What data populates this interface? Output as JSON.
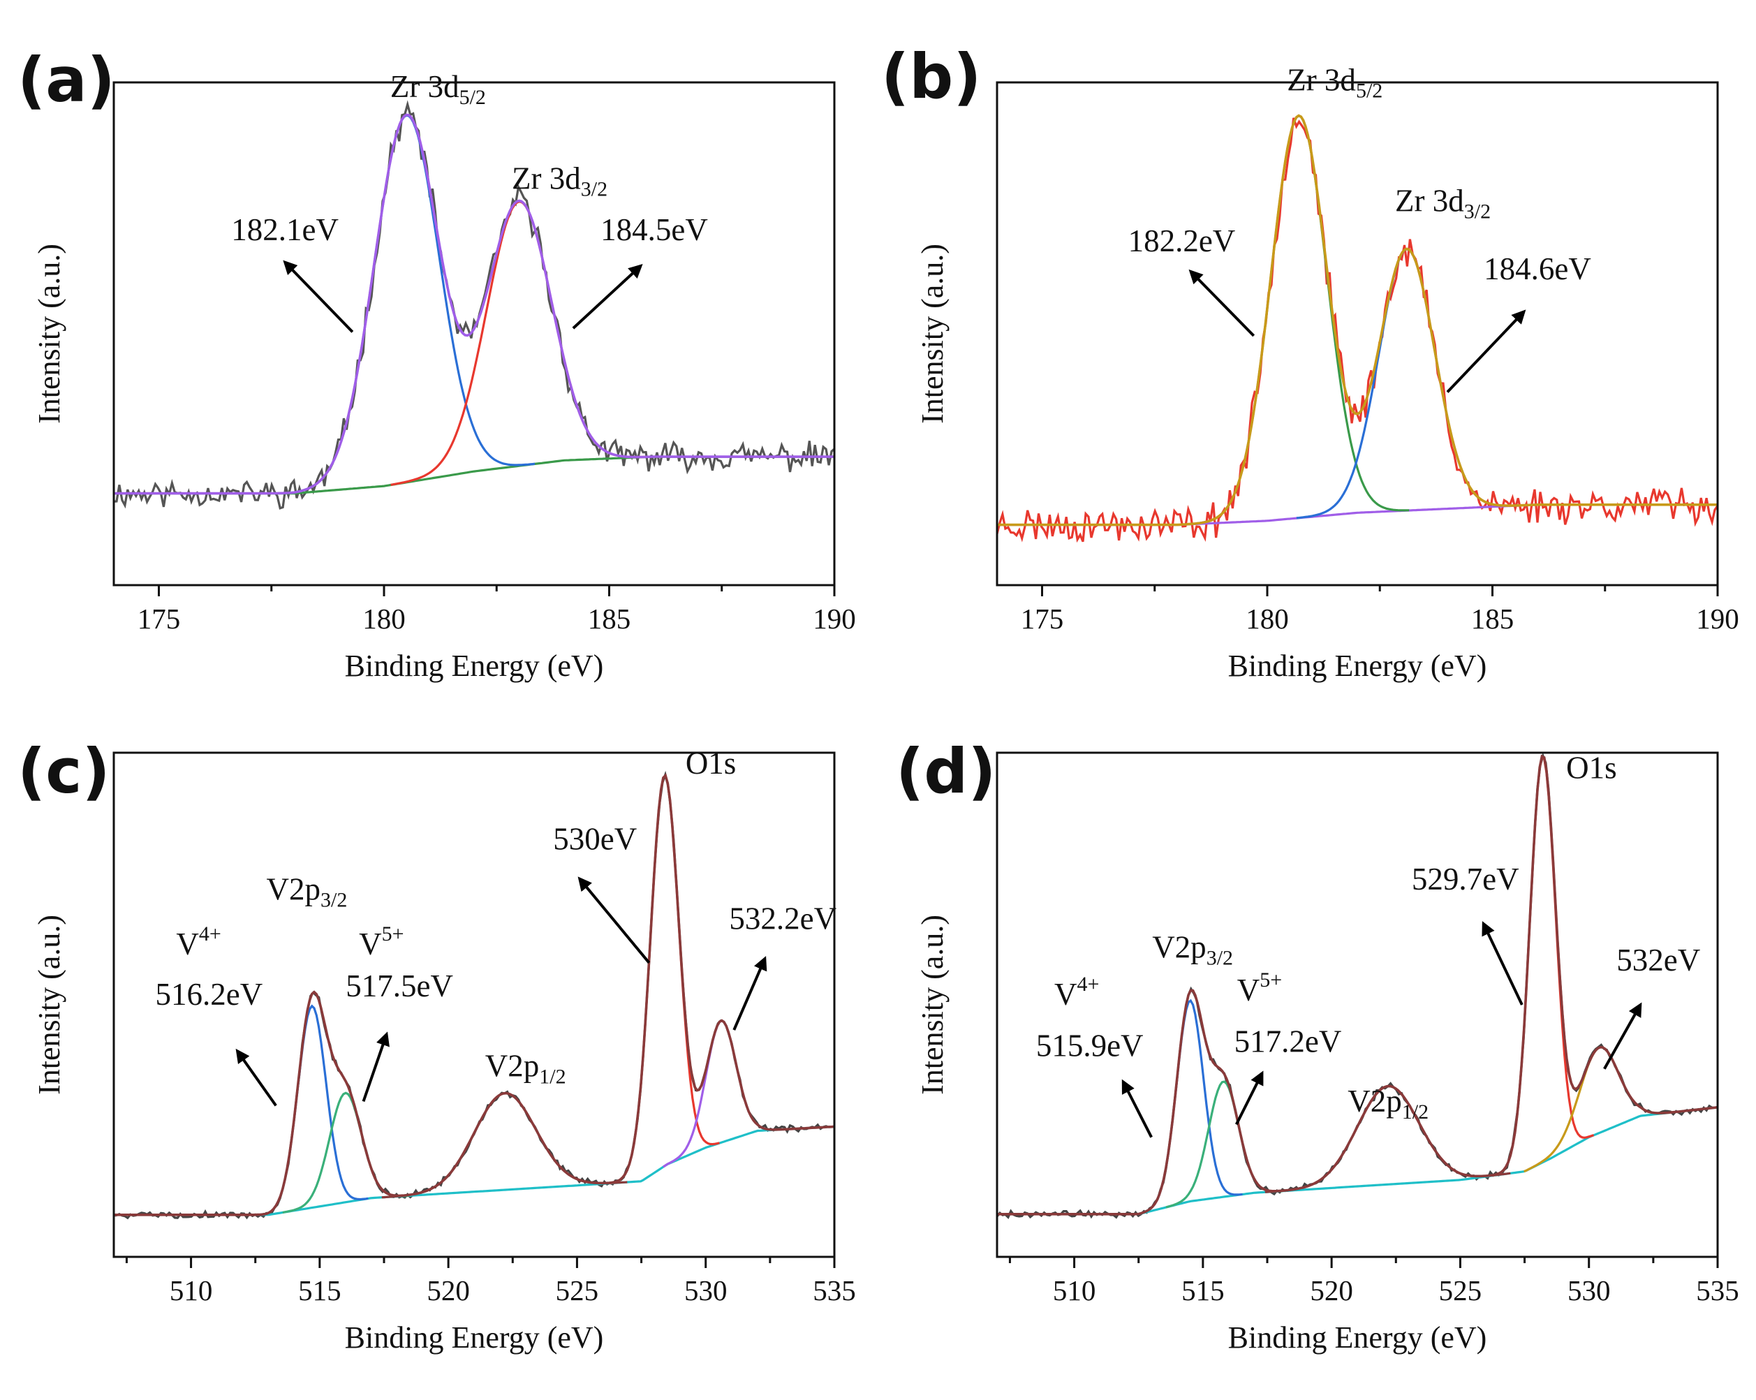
{
  "chart_data": [
    {
      "panel": "(a)",
      "type": "line",
      "xlabel": "Binding Energy (eV)",
      "ylabel": "Intensity (a.u.)",
      "xlim": [
        174,
        190
      ],
      "xticks": [
        175,
        180,
        185,
        190
      ],
      "ylim": [
        -0.25,
        1.12
      ],
      "baseline": [
        [
          174,
          0.0
        ],
        [
          178,
          0.0
        ],
        [
          180,
          0.02
        ],
        [
          182,
          0.06
        ],
        [
          184,
          0.09
        ],
        [
          186,
          0.1
        ],
        [
          190,
          0.1
        ]
      ],
      "peaks": [
        {
          "center": 180.5,
          "width": 0.72,
          "height": 1.0,
          "color": "#2a6fd6",
          "name": "Zr 3d5/2 fit"
        },
        {
          "center": 183.0,
          "width": 0.72,
          "height": 0.72,
          "color": "#e8382e",
          "name": "Zr 3d3/2 fit"
        }
      ],
      "baseline_color": "#3a9a4a",
      "envelope_color": "#a05ee8",
      "raw_color": "#555555",
      "noise": 0.03,
      "seed": 11,
      "labels": [
        {
          "base": "Zr 3d",
          "sub": "5/2",
          "x": 181.2,
          "y": 1.08
        },
        {
          "base": "Zr 3d",
          "sub": "3/2",
          "x": 183.9,
          "y": 0.83
        },
        {
          "base": "182.1eV",
          "x": 177.8,
          "y": 0.69
        },
        {
          "base": "184.5eV",
          "x": 186.0,
          "y": 0.69
        }
      ],
      "arrows": [
        {
          "from": [
            179.3,
            0.44
          ],
          "to": [
            177.8,
            0.63
          ]
        },
        {
          "from": [
            184.2,
            0.45
          ],
          "to": [
            185.7,
            0.62
          ]
        }
      ]
    },
    {
      "panel": "(b)",
      "type": "line",
      "xlabel": "Binding Energy (eV)",
      "ylabel": "Intensity (a.u.)",
      "xlim": [
        174,
        190
      ],
      "xticks": [
        175,
        180,
        185,
        190
      ],
      "ylim": [
        -0.15,
        1.1
      ],
      "baseline": [
        [
          174,
          0.0
        ],
        [
          178,
          0.0
        ],
        [
          180,
          0.01
        ],
        [
          182,
          0.03
        ],
        [
          184,
          0.04
        ],
        [
          186,
          0.05
        ],
        [
          190,
          0.05
        ]
      ],
      "peaks": [
        {
          "center": 180.7,
          "width": 0.62,
          "height": 1.0,
          "color": "#3a9a4a",
          "name": "Zr 3d5/2 fit"
        },
        {
          "center": 183.1,
          "width": 0.62,
          "height": 0.65,
          "color": "#2a6fd6",
          "name": "Zr 3d3/2 fit"
        }
      ],
      "baseline_color": "#a05ee8",
      "envelope_color": "#c89a1a",
      "raw_color": "#e8382e",
      "noise": 0.035,
      "seed": 23,
      "labels": [
        {
          "base": "Zr 3d",
          "sub": "5/2",
          "x": 181.5,
          "y": 1.08
        },
        {
          "base": "Zr 3d",
          "sub": "3/2",
          "x": 183.9,
          "y": 0.78
        },
        {
          "base": "182.2eV",
          "x": 178.1,
          "y": 0.68
        },
        {
          "base": "184.6eV",
          "x": 186.0,
          "y": 0.61
        }
      ],
      "arrows": [
        {
          "from": [
            179.7,
            0.47
          ],
          "to": [
            178.3,
            0.63
          ]
        },
        {
          "from": [
            184.0,
            0.33
          ],
          "to": [
            185.7,
            0.53
          ]
        }
      ]
    },
    {
      "panel": "(c)",
      "type": "line",
      "xlabel": "Binding Energy (eV)",
      "ylabel": "Intensity (a.u.)",
      "xlim": [
        507,
        535
      ],
      "xticks": [
        510,
        515,
        520,
        525,
        530,
        535
      ],
      "ylim": [
        -0.1,
        1.1
      ],
      "baseline": [
        [
          507,
          0.0
        ],
        [
          513,
          0.0
        ],
        [
          515,
          0.02
        ],
        [
          517,
          0.04
        ],
        [
          525,
          0.07
        ],
        [
          527.5,
          0.08
        ],
        [
          528.5,
          0.12
        ],
        [
          530,
          0.16
        ],
        [
          532,
          0.2
        ],
        [
          535,
          0.21
        ]
      ],
      "peaks": [
        {
          "center": 514.7,
          "width": 0.55,
          "height": 0.48,
          "color": "#2a6fd6",
          "name": "V4+ fit"
        },
        {
          "center": 516.0,
          "width": 0.62,
          "height": 0.26,
          "color": "#3ab07a",
          "name": "V5+ fit"
        },
        {
          "center": 522.2,
          "width": 1.2,
          "height": 0.23,
          "color": "#8a3a3a",
          "name": "V2p1/2 fit"
        },
        {
          "center": 528.4,
          "width": 0.55,
          "height": 0.93,
          "color": "#e8382e",
          "name": "O1s fit"
        },
        {
          "center": 530.6,
          "width": 0.58,
          "height": 0.29,
          "color": "#a05ee8",
          "name": "O1s 532.2 fit"
        }
      ],
      "baseline_color": "#1fbfc8",
      "envelope_color": "#8a3a3a",
      "raw_color": "#444444",
      "noise": 0.006,
      "seed": 5,
      "labels": [
        {
          "base": "O1s",
          "x": 530.2,
          "y": 1.05
        },
        {
          "base": "530eV",
          "x": 525.7,
          "y": 0.87
        },
        {
          "base": "532.2eV",
          "x": 533.0,
          "y": 0.68
        },
        {
          "base": "V2p",
          "sub": "3/2",
          "x": 514.5,
          "y": 0.75
        },
        {
          "base": "V",
          "sup": "4+",
          "x": 510.3,
          "y": 0.62
        },
        {
          "base": "V",
          "sup": "5+",
          "x": 517.4,
          "y": 0.62
        },
        {
          "base": "516.2eV",
          "x": 510.7,
          "y": 0.5
        },
        {
          "base": "517.5eV",
          "x": 518.1,
          "y": 0.52
        },
        {
          "base": "V2p",
          "sub": "1/2",
          "x": 523.0,
          "y": 0.33
        }
      ],
      "arrows": [
        {
          "from": [
            513.3,
            0.26
          ],
          "to": [
            511.8,
            0.39
          ]
        },
        {
          "from": [
            516.7,
            0.27
          ],
          "to": [
            517.6,
            0.43
          ]
        },
        {
          "from": [
            527.8,
            0.6
          ],
          "to": [
            525.1,
            0.8
          ]
        },
        {
          "from": [
            531.1,
            0.44
          ],
          "to": [
            532.3,
            0.61
          ]
        }
      ]
    },
    {
      "panel": "(d)",
      "type": "line",
      "xlabel": "Binding Energy (eV)",
      "ylabel": "Intensity (a.u.)",
      "xlim": [
        507,
        535
      ],
      "xticks": [
        510,
        515,
        520,
        525,
        530,
        535
      ],
      "ylim": [
        -0.1,
        1.08
      ],
      "baseline": [
        [
          507,
          0.0
        ],
        [
          512.5,
          0.0
        ],
        [
          514.5,
          0.03
        ],
        [
          517,
          0.05
        ],
        [
          525,
          0.08
        ],
        [
          527.5,
          0.1
        ],
        [
          528.5,
          0.13
        ],
        [
          530,
          0.18
        ],
        [
          532,
          0.23
        ],
        [
          535,
          0.25
        ]
      ],
      "peaks": [
        {
          "center": 514.5,
          "width": 0.52,
          "height": 0.47,
          "color": "#2a6fd6",
          "name": "V4+ fit"
        },
        {
          "center": 515.8,
          "width": 0.58,
          "height": 0.27,
          "color": "#3ab07a",
          "name": "V5+ fit"
        },
        {
          "center": 522.2,
          "width": 1.2,
          "height": 0.23,
          "color": "#8a3a3a",
          "name": "V2p1/2 fit"
        },
        {
          "center": 528.2,
          "width": 0.5,
          "height": 0.95,
          "color": "#e8382e",
          "name": "O1s fit"
        },
        {
          "center": 530.4,
          "width": 0.75,
          "height": 0.2,
          "color": "#c89a1a",
          "name": "O1s 532 fit"
        }
      ],
      "baseline_color": "#1fbfc8",
      "envelope_color": "#8a3a3a",
      "raw_color": "#444444",
      "noise": 0.006,
      "seed": 9,
      "labels": [
        {
          "base": "O1s",
          "x": 530.1,
          "y": 1.02
        },
        {
          "base": "529.7eV",
          "x": 525.2,
          "y": 0.76
        },
        {
          "base": "532eV",
          "x": 532.7,
          "y": 0.57
        },
        {
          "base": "V2p",
          "sub": "3/2",
          "x": 514.6,
          "y": 0.6
        },
        {
          "base": "V",
          "sup": "4+",
          "x": 510.1,
          "y": 0.49
        },
        {
          "base": "V",
          "sup": "5+",
          "x": 517.2,
          "y": 0.5
        },
        {
          "base": "515.9eV",
          "x": 510.6,
          "y": 0.37
        },
        {
          "base": "517.2eV",
          "x": 518.3,
          "y": 0.38
        },
        {
          "base": "V2p",
          "sub": "1/2",
          "x": 522.2,
          "y": 0.24
        }
      ],
      "arrows": [
        {
          "from": [
            513.0,
            0.18
          ],
          "to": [
            511.9,
            0.31
          ]
        },
        {
          "from": [
            516.3,
            0.21
          ],
          "to": [
            517.3,
            0.33
          ]
        },
        {
          "from": [
            527.4,
            0.49
          ],
          "to": [
            525.9,
            0.68
          ]
        },
        {
          "from": [
            530.6,
            0.34
          ],
          "to": [
            532.0,
            0.49
          ]
        }
      ]
    }
  ]
}
